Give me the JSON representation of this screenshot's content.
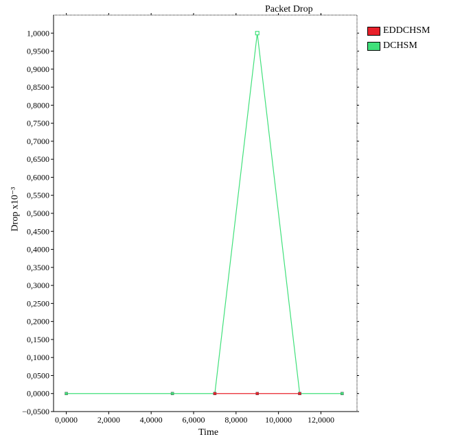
{
  "chart_data": {
    "type": "line",
    "title": "Packet Drop",
    "xlabel": "Time",
    "ylabel": "Drop x10⁻³",
    "xlim": [
      -0.6,
      13.7
    ],
    "ylim": [
      -0.05,
      1.05
    ],
    "x_ticks": [
      0,
      2,
      4,
      6,
      8,
      10,
      12
    ],
    "x_tick_labels": [
      "0,0000",
      "2,0000",
      "4,0000",
      "6,0000",
      "8,0000",
      "10,0000",
      "12,0000"
    ],
    "y_ticks": [
      -0.05,
      0,
      0.05,
      0.1,
      0.15,
      0.2,
      0.25,
      0.3,
      0.35,
      0.4,
      0.45,
      0.5,
      0.55,
      0.6,
      0.65,
      0.7,
      0.75,
      0.8,
      0.85,
      0.9,
      0.95,
      1.0
    ],
    "y_tick_labels": [
      "−0,0500",
      "0,0000",
      "0,0500",
      "0,1000",
      "0,1500",
      "0,2000",
      "0,2500",
      "0,3000",
      "0,3500",
      "0,4000",
      "0,4500",
      "0,5000",
      "0,5500",
      "0,6000",
      "0,6500",
      "0,7000",
      "0,7500",
      "0,8000",
      "0,8500",
      "0,9000",
      "0,9500",
      "1,0000"
    ],
    "legend_position": "top-right outside",
    "grid": false,
    "series": [
      {
        "name": "EDDCHSM",
        "color": "#e8202a",
        "x": [
          7,
          9,
          11
        ],
        "y": [
          0,
          0,
          0
        ]
      },
      {
        "name": "DCHSM",
        "color": "#3fe07a",
        "x": [
          0,
          5,
          7,
          9,
          11,
          13
        ],
        "y": [
          0,
          0,
          0,
          1,
          0,
          0
        ]
      }
    ]
  }
}
